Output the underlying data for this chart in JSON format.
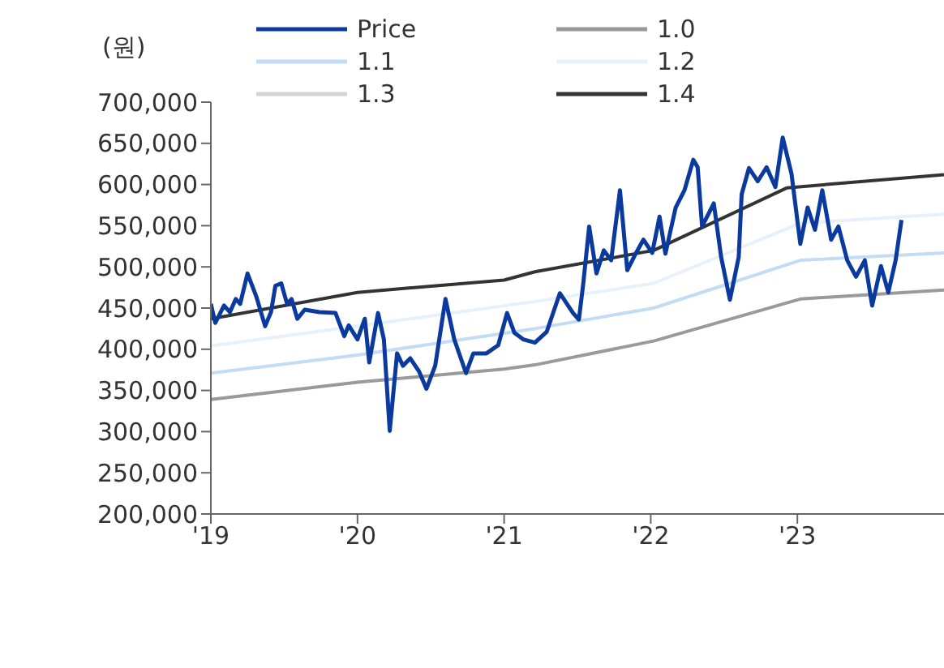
{
  "chart_data": {
    "type": "line",
    "ylabel": "(원)",
    "legend": "top",
    "grid": false,
    "marker": "none",
    "line_style": "solid",
    "xlim": [
      2019,
      2024
    ],
    "xticks": [
      {
        "value": 2019,
        "label": "'19"
      },
      {
        "value": 2020,
        "label": "'20"
      },
      {
        "value": 2021,
        "label": "'21"
      },
      {
        "value": 2022,
        "label": "'22"
      },
      {
        "value": 2023,
        "label": "'23"
      }
    ],
    "ylim": [
      200000,
      700000
    ],
    "yticks": [
      {
        "value": 200000,
        "label": "200,000"
      },
      {
        "value": 250000,
        "label": "250,000"
      },
      {
        "value": 300000,
        "label": "300,000"
      },
      {
        "value": 350000,
        "label": "350,000"
      },
      {
        "value": 400000,
        "label": "400,000"
      },
      {
        "value": 450000,
        "label": "450,000"
      },
      {
        "value": 500000,
        "label": "500,000"
      },
      {
        "value": 550000,
        "label": "550,000"
      },
      {
        "value": 600000,
        "label": "600,000"
      },
      {
        "value": 650000,
        "label": "650,000"
      },
      {
        "value": 700000,
        "label": "700,000"
      }
    ],
    "series": [
      {
        "name": "Price",
        "color": "#0b3a9e",
        "x": [
          2019.0,
          2019.03,
          2019.09,
          2019.13,
          2019.17,
          2019.2,
          2019.25,
          2019.31,
          2019.37,
          2019.41,
          2019.44,
          2019.48,
          2019.52,
          2019.55,
          2019.59,
          2019.64,
          2019.74,
          2019.85,
          2019.91,
          2019.94,
          2020.0,
          2020.05,
          2020.08,
          2020.14,
          2020.18,
          2020.22,
          2020.27,
          2020.31,
          2020.36,
          2020.42,
          2020.47,
          2020.53,
          2020.6,
          2020.66,
          2020.74,
          2020.79,
          2020.88,
          2020.96,
          2021.02,
          2021.07,
          2021.13,
          2021.21,
          2021.29,
          2021.38,
          2021.47,
          2021.51,
          2021.54,
          2021.58,
          2021.63,
          2021.68,
          2021.73,
          2021.79,
          2021.84,
          2021.9,
          2021.95,
          2022.01,
          2022.06,
          2022.1,
          2022.17,
          2022.23,
          2022.29,
          2022.32,
          2022.35,
          2022.43,
          2022.48,
          2022.54,
          2022.6,
          2022.62,
          2022.67,
          2022.73,
          2022.79,
          2022.85,
          2022.9,
          2022.96,
          2023.02,
          2023.07,
          2023.12,
          2023.17,
          2023.23,
          2023.28,
          2023.34,
          2023.4,
          2023.46,
          2023.51,
          2023.57,
          2023.62,
          2023.67,
          2023.71
        ],
        "values": [
          455000,
          432000,
          453000,
          445000,
          461000,
          455000,
          492000,
          464000,
          428000,
          445000,
          477000,
          480000,
          455000,
          461000,
          437000,
          448000,
          445000,
          444000,
          416000,
          429000,
          412000,
          437000,
          384000,
          444000,
          412000,
          301000,
          395000,
          380000,
          389000,
          373000,
          352000,
          380000,
          461000,
          412000,
          371000,
          395000,
          395000,
          405000,
          444000,
          420000,
          412000,
          408000,
          421000,
          468000,
          444000,
          436000,
          480000,
          549000,
          492000,
          520000,
          508000,
          593000,
          496000,
          517000,
          533000,
          517000,
          561000,
          516000,
          572000,
          593000,
          630000,
          621000,
          549000,
          577000,
          512000,
          460000,
          512000,
          588000,
          620000,
          604000,
          621000,
          597000,
          657000,
          613000,
          528000,
          572000,
          545000,
          593000,
          533000,
          549000,
          508000,
          488000,
          508000,
          453000,
          501000,
          469000,
          508000,
          557000
        ]
      },
      {
        "name": "1.0",
        "color": "#9a9a9a",
        "x": [
          2019,
          2020,
          2021,
          2021.21,
          2022.02,
          2023.02,
          2024
        ],
        "values": [
          339000,
          360000,
          376000,
          381000,
          410000,
          461000,
          472000
        ]
      },
      {
        "name": "1.1",
        "color": "#c3dbf5",
        "x": [
          2019,
          2020,
          2021.21,
          2022.02,
          2023.02,
          2024
        ],
        "values": [
          371000,
          393000,
          425000,
          450000,
          508000,
          517000
        ]
      },
      {
        "name": "1.2",
        "color": "#e6f1fc",
        "x": [
          2019,
          2020,
          2021.21,
          2022.02,
          2023.02,
          2024
        ],
        "values": [
          404000,
          428000,
          458000,
          480000,
          553000,
          564000
        ]
      },
      {
        "name": "1.3",
        "color": "#d4d4d4"
      },
      {
        "name": "1.4",
        "color": "#333333",
        "x": [
          2019,
          2020,
          2021,
          2021.21,
          2022.02,
          2022.93,
          2024
        ],
        "values": [
          437000,
          469000,
          484000,
          494000,
          520000,
          596000,
          612000
        ]
      }
    ]
  }
}
